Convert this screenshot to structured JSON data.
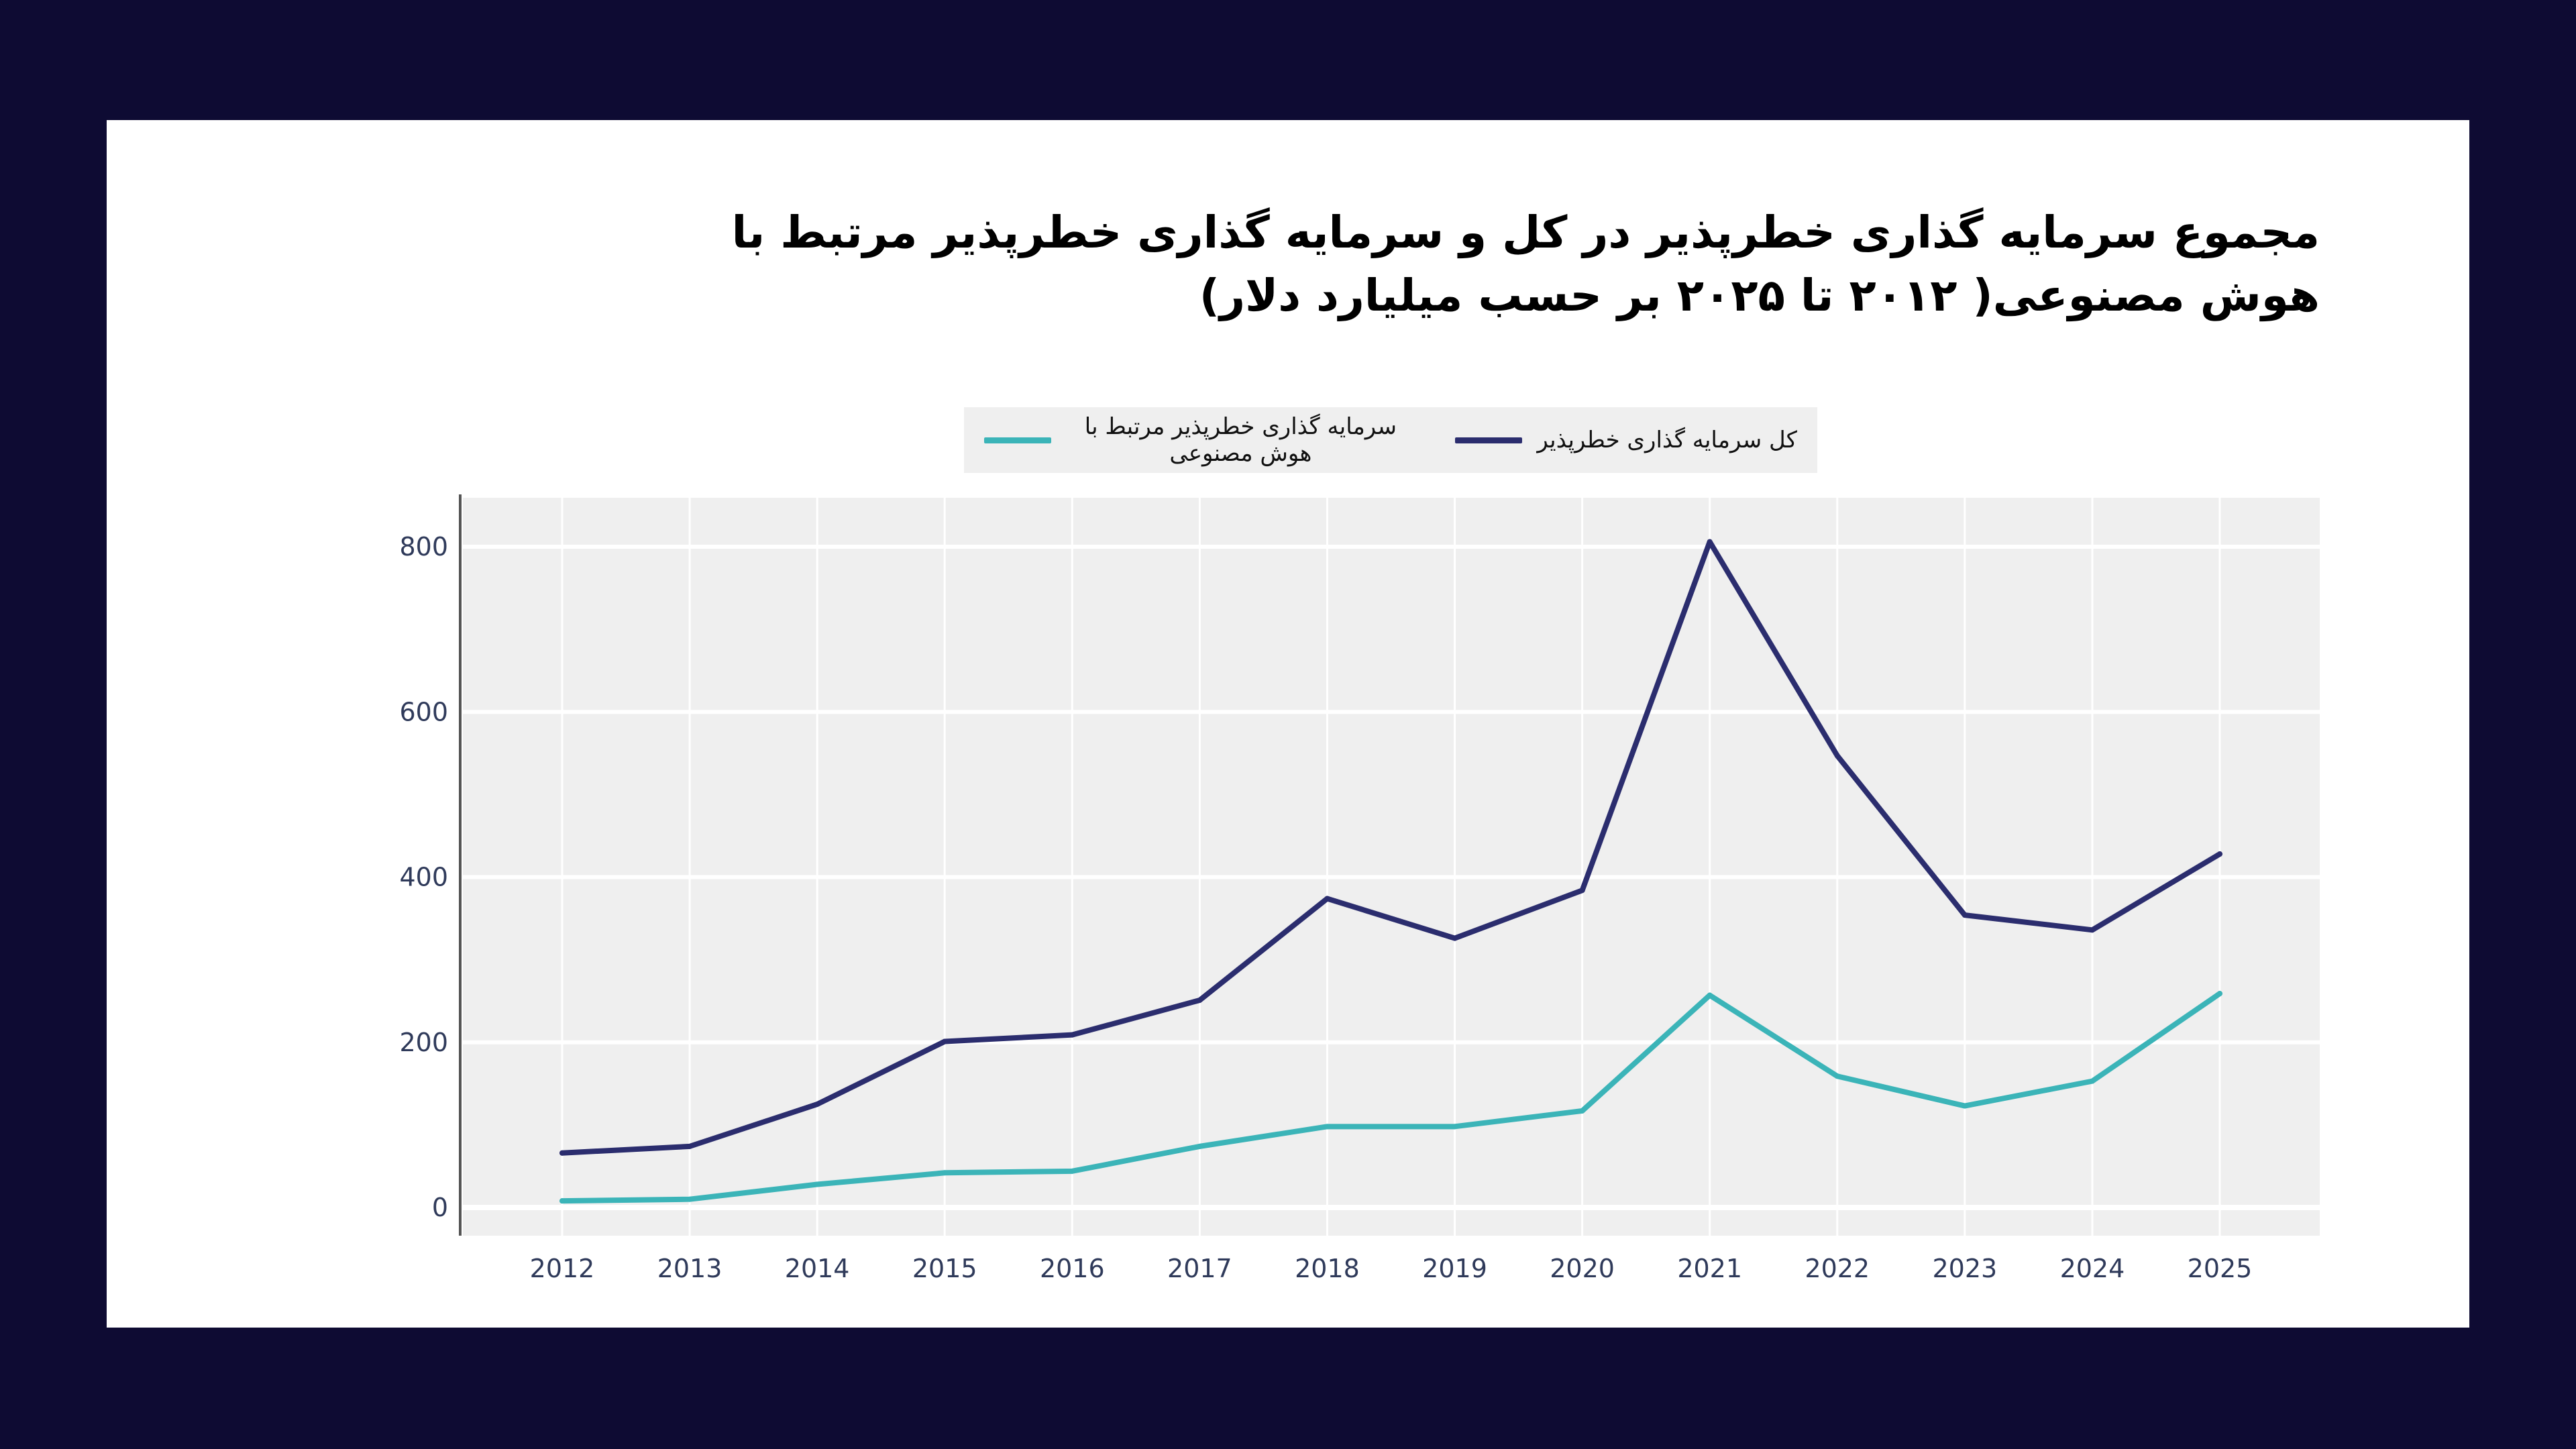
{
  "chart_data": {
    "type": "line",
    "title": "مجموع سرمایه گذاری خطرپذیر در کل و سرمایه گذاری خطرپذیر مرتبط با هوش مصنوعی( ۲۰۱۲ تا ۲۰۲۵ بر حسب میلیارد دلار)",
    "xlabel": "",
    "ylabel": "",
    "x": [
      2012,
      2013,
      2014,
      2015,
      2016,
      2017,
      2018,
      2019,
      2020,
      2021,
      2022,
      2023,
      2024,
      2025
    ],
    "ylim": [
      -35,
      840
    ],
    "yticks": [
      0,
      200,
      400,
      600,
      800
    ],
    "grid": true,
    "legend_position": "top-center",
    "series": [
      {
        "name": "کل سرمایه گذاری خطرپذیر",
        "color": "#2b2d6e",
        "values": [
          66,
          74,
          125,
          201,
          209,
          251,
          374,
          326,
          384,
          806,
          547,
          354,
          336,
          428
        ]
      },
      {
        "name": "سرمایه گذاری خطرپذیر مرتبط با هوش مصنوعی",
        "color": "#3bb4b8",
        "values": [
          8,
          10,
          28,
          42,
          44,
          74,
          98,
          98,
          117,
          257,
          159,
          123,
          153,
          259
        ]
      }
    ]
  },
  "colors": {
    "background": "#0e0b33",
    "card": "#ffffff",
    "plot_bg": "#efefef"
  }
}
